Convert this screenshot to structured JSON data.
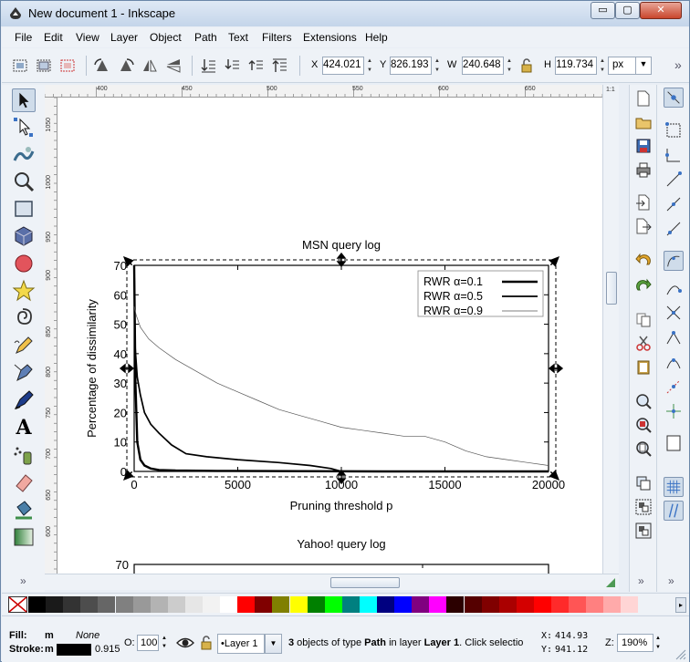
{
  "window": {
    "title": "New document 1 - Inkscape",
    "min_glyph": "▭",
    "max_glyph": "▢",
    "close_glyph": "✕"
  },
  "menu": [
    "File",
    "Edit",
    "View",
    "Layer",
    "Object",
    "Path",
    "Text",
    "Filters",
    "Extensions",
    "Help"
  ],
  "tool_controls": {
    "x_label": "X",
    "x_value": "424.021",
    "y_label": "Y",
    "y_value": "826.193",
    "w_label": "W",
    "w_value": "240.648",
    "h_label": "H",
    "h_value": "119.734",
    "unit": "px"
  },
  "ruler": {
    "top_labels": [
      "400",
      "450",
      "500",
      "550",
      "600",
      "650"
    ],
    "left_labels": [
      "1050",
      "1000",
      "950",
      "900",
      "850",
      "800",
      "750",
      "700",
      "650",
      "600"
    ]
  },
  "document": {
    "chart1_title": "MSN query log",
    "chart2_title": "Yahoo! query log",
    "chart2_ytick": "70"
  },
  "chart_data": {
    "type": "line",
    "title": "MSN query log",
    "xlabel": "Pruning threshold p",
    "ylabel": "Percentage of dissimilarity",
    "xlim": [
      0,
      20000
    ],
    "ylim": [
      0,
      70
    ],
    "xticks": [
      0,
      5000,
      10000,
      15000,
      20000
    ],
    "yticks": [
      0,
      10,
      20,
      30,
      40,
      50,
      60,
      70
    ],
    "grid": false,
    "legend_position": "top-right",
    "series": [
      {
        "name": "RWR α=0.1",
        "style": "thick",
        "x": [
          0,
          60,
          150,
          300,
          500,
          800,
          1200,
          2000,
          4000,
          8000,
          12000,
          16000,
          20000
        ],
        "y": [
          70,
          30,
          10,
          4,
          2,
          1,
          0.5,
          0.3,
          0.2,
          0.1,
          0,
          0,
          0
        ]
      },
      {
        "name": "RWR α=0.5",
        "style": "medium",
        "x": [
          0,
          50,
          150,
          300,
          500,
          800,
          1200,
          1800,
          2500,
          3500,
          5000,
          7000,
          8500,
          9500,
          10000,
          12000,
          15000,
          18000,
          20000
        ],
        "y": [
          70,
          42,
          32,
          26,
          20,
          16,
          13,
          9,
          6,
          5,
          4,
          3,
          2,
          1,
          0,
          0,
          0,
          0,
          0
        ]
      },
      {
        "name": "RWR α=0.9",
        "style": "thin",
        "x": [
          0,
          100,
          300,
          700,
          1200,
          2000,
          3000,
          4000,
          5000,
          6000,
          7000,
          8000,
          9000,
          10000,
          11000,
          12000,
          13000,
          14000,
          15000,
          16000,
          17000,
          18000,
          19000,
          20000
        ],
        "y": [
          56,
          53,
          49,
          45,
          42,
          38,
          34,
          30,
          27,
          24,
          21,
          19,
          17,
          15,
          14,
          13,
          12,
          12,
          10,
          7,
          5,
          4,
          3,
          2
        ]
      }
    ]
  },
  "palette": {
    "colors": [
      "#000000",
      "#1a1a1a",
      "#333333",
      "#4d4d4d",
      "#666666",
      "#808080",
      "#999999",
      "#b3b3b3",
      "#cccccc",
      "#e6e6e6",
      "#f2f2f2",
      "#ffffff",
      "#ff0000",
      "#800000",
      "#808000",
      "#ffff00",
      "#008000",
      "#00ff00",
      "#008080",
      "#00ffff",
      "#000080",
      "#0000ff",
      "#800080",
      "#ff00ff",
      "#2b0000",
      "#550000",
      "#800000",
      "#aa0000",
      "#d40000",
      "#ff0000",
      "#ff2a2a",
      "#ff5555",
      "#ff8080",
      "#ffaaaa",
      "#ffd5d5"
    ]
  },
  "status": {
    "fill_label": "Fill:",
    "fill_value": "m",
    "fill_none": "None",
    "stroke_label": "Stroke:",
    "stroke_value": "m",
    "stroke_width": "0.915",
    "opacity_label": "O:",
    "opacity_value": "100",
    "layer": "•Layer 1",
    "message_count": "3",
    "message_middle1": " objects of type ",
    "message_type": "Path",
    "message_middle2": " in layer ",
    "message_layer": "Layer 1",
    "message_tail": ". Click selectio",
    "x_label": "X:",
    "x_value": "414.93",
    "y_label": "Y:",
    "y_value": "941.12",
    "zoom_label": "Z:",
    "zoom_value": "190%"
  },
  "colors": {
    "selection": "#000000",
    "accent": "#3a72c4"
  }
}
